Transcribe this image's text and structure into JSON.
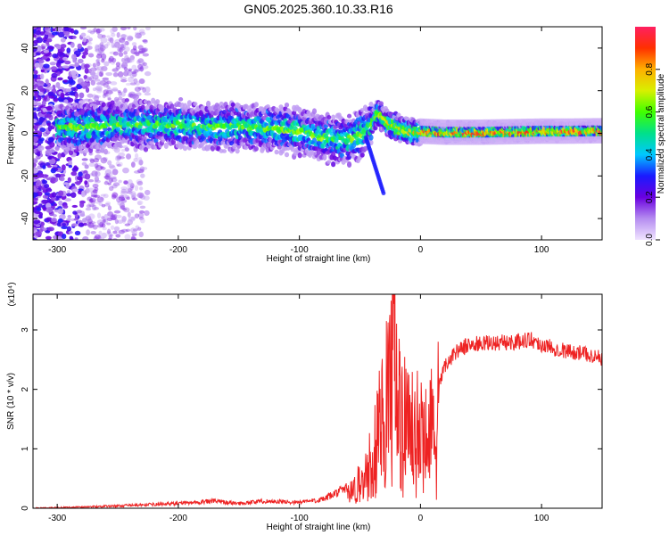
{
  "title": "GN05.2025.360.10.33.R16",
  "chart_data": [
    {
      "type": "heatmap",
      "xlabel": "Height of straight line (km)",
      "ylabel": "Frequency (Hz)",
      "xlim": [
        -320,
        150
      ],
      "ylim": [
        -50,
        50
      ],
      "xticks": [
        -300,
        -200,
        -100,
        0,
        100
      ],
      "yticks": [
        -40,
        -20,
        0,
        20,
        40
      ],
      "grid": false,
      "colorbar": {
        "label": "Normalized spectral amplitude",
        "range": [
          0,
          1
        ],
        "ticks": [
          "0.0",
          "0.2",
          "0.4",
          "0.6",
          "0.8"
        ],
        "colors": [
          "#f0e4ff",
          "#b58cf0",
          "#6a00e0",
          "#1a1aff",
          "#00c8ff",
          "#00e08a",
          "#40ff00",
          "#d8f000",
          "#ffb000",
          "#ff3000",
          "#ff2060"
        ]
      },
      "ridge": {
        "x": [
          -280,
          -250,
          -220,
          -200,
          -180,
          -160,
          -140,
          -120,
          -100,
          -80,
          -60,
          -50,
          -40,
          -35,
          -30,
          -20,
          -10,
          0,
          20,
          50,
          80,
          100,
          120,
          150
        ],
        "frequency": [
          3,
          4,
          4,
          4,
          3,
          3,
          3,
          2,
          1,
          -2,
          -3,
          -1,
          5,
          10,
          6,
          3,
          1,
          1,
          0.5,
          0.5,
          0.8,
          1,
          1,
          1.2
        ]
      }
    },
    {
      "type": "line",
      "xlabel": "Height of straight line (km)",
      "ylabel": "SNR (10 * v/v)",
      "multiplier": "(x10⁴)",
      "xlim": [
        -320,
        150
      ],
      "ylim": [
        0,
        3.6
      ],
      "xticks": [
        -300,
        -200,
        -100,
        0,
        100
      ],
      "yticks": [
        0,
        1,
        2,
        3
      ],
      "grid": false,
      "series_color": "#ee2222",
      "x": [
        -320,
        -280,
        -250,
        -200,
        -170,
        -150,
        -130,
        -100,
        -80,
        -70,
        -60,
        -50,
        -45,
        -40,
        -35,
        -30,
        -25,
        -22,
        -20,
        -15,
        -10,
        -5,
        0,
        5,
        10,
        12,
        15,
        20,
        30,
        40,
        60,
        80,
        90,
        100,
        110,
        120,
        130,
        140,
        150
      ],
      "value": [
        0.0,
        0.02,
        0.04,
        0.08,
        0.12,
        0.08,
        0.12,
        0.1,
        0.15,
        0.25,
        0.35,
        0.5,
        0.7,
        0.9,
        1.4,
        1.9,
        2.5,
        3.55,
        2.2,
        1.8,
        1.6,
        1.5,
        1.55,
        1.6,
        1.7,
        0.7,
        2.0,
        2.4,
        2.65,
        2.75,
        2.78,
        2.8,
        2.85,
        2.75,
        2.7,
        2.65,
        2.62,
        2.58,
        2.52
      ]
    }
  ]
}
